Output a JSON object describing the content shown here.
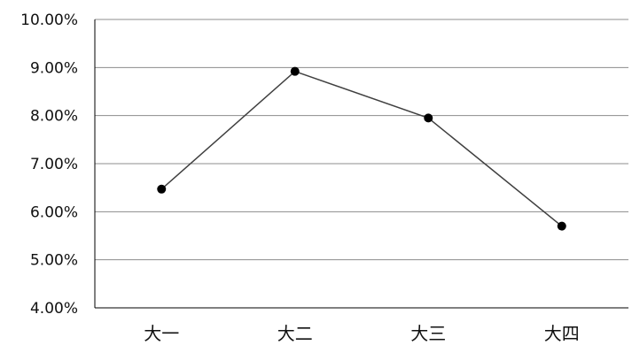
{
  "chart_data": {
    "type": "line",
    "categories": [
      "大一",
      "大二",
      "大三",
      "大四"
    ],
    "series": [
      {
        "values": [
          6.47,
          8.92,
          7.95,
          5.7
        ]
      }
    ],
    "ylim": [
      4,
      10
    ],
    "yticks": [
      4,
      5,
      6,
      7,
      8,
      9,
      10
    ],
    "ytick_labels": [
      "4.00%",
      "5.00%",
      "6.00%",
      "7.00%",
      "8.00%",
      "9.00%",
      "10.00%"
    ],
    "grid": true,
    "legend": "none",
    "colors": {
      "line": "#404040",
      "marker": "#000000",
      "grid": "#8c8c8c",
      "axis": "#000000"
    }
  }
}
